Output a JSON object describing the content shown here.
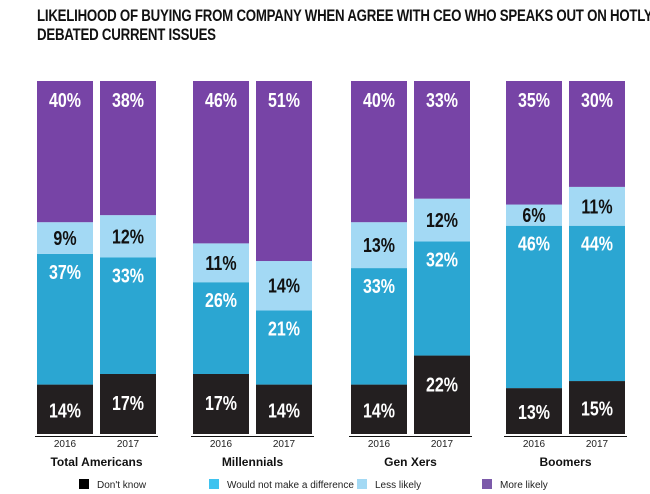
{
  "chart_data": {
    "type": "bar",
    "stacked": true,
    "title_lines": [
      "LIKELIHOOD OF BUYING FROM COMPANY WHEN AGREE WITH CEO WHO SPEAKS OUT ON HOTLY",
      "DEBATED CURRENT ISSUES"
    ],
    "groups": [
      "Total Americans",
      "Millennials",
      "Gen Xers",
      "Boomers"
    ],
    "categories": [
      "2016",
      "2017"
    ],
    "ylim": [
      0,
      100
    ],
    "legend_position": "bottom",
    "series": [
      {
        "name": "Don't know",
        "color": "#231f20",
        "label_color": "#ffffff",
        "values": [
          [
            14,
            17
          ],
          [
            17,
            14
          ],
          [
            14,
            22
          ],
          [
            13,
            15
          ]
        ]
      },
      {
        "name": "Would not make a difference",
        "color": "#2ba6d2",
        "label_color": "#ffffff",
        "values": [
          [
            37,
            33
          ],
          [
            26,
            21
          ],
          [
            33,
            32
          ],
          [
            46,
            44
          ]
        ]
      },
      {
        "name": "Less likely",
        "color": "#a3d9f4",
        "label_color": "#111111",
        "values": [
          [
            9,
            12
          ],
          [
            11,
            14
          ],
          [
            13,
            12
          ],
          [
            6,
            11
          ]
        ]
      },
      {
        "name": "More likely",
        "color": "#7744a6",
        "label_color": "#ffffff",
        "values": [
          [
            40,
            38
          ],
          [
            46,
            51
          ],
          [
            40,
            33
          ],
          [
            35,
            30
          ]
        ]
      }
    ],
    "legend_swatch_colors": [
      "#000000",
      "#3fc3ef",
      "#a3d9f4",
      "#7c5aaa"
    ]
  }
}
